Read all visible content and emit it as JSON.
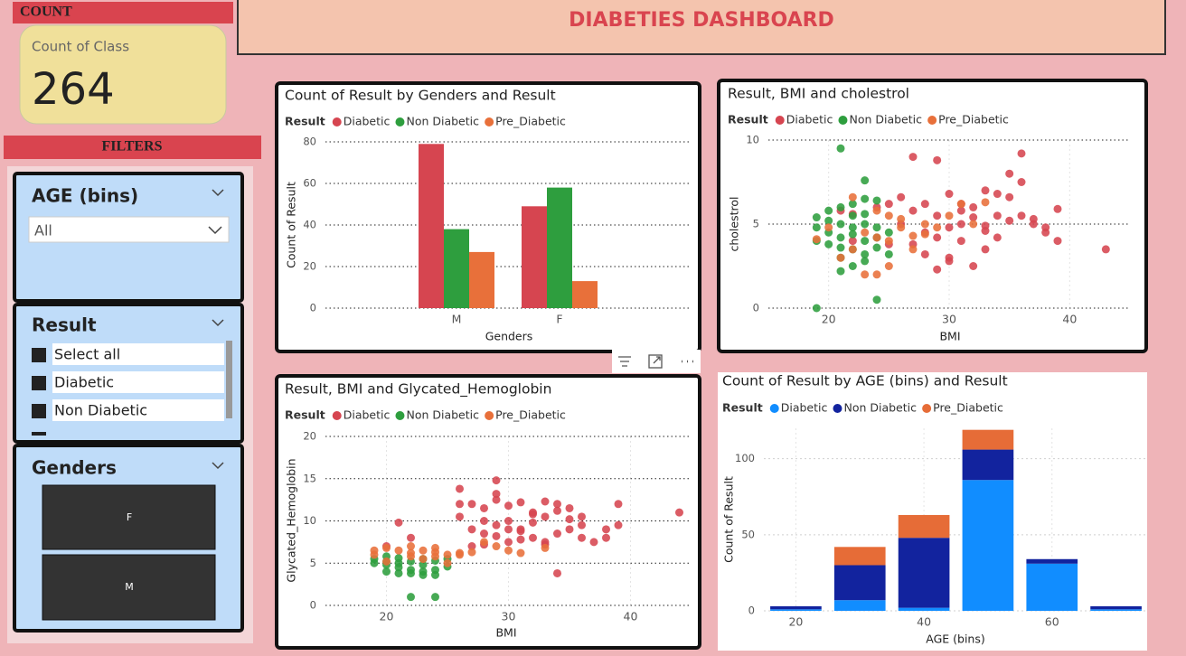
{
  "header": {
    "title": "DIABETIES DASHBOARD"
  },
  "count_card": {
    "section_label": "COUNT",
    "label": "Count of Class",
    "value": 264
  },
  "filters": {
    "section_label": "FILTERS",
    "age_slicer": {
      "title": "AGE (bins)",
      "selection": "All"
    },
    "result_slicer": {
      "title": "Result",
      "items": [
        "Select all",
        "Diabetic",
        "Non Diabetic"
      ]
    },
    "gender_slicer": {
      "title": "Genders",
      "buttons": [
        "F",
        "M"
      ]
    }
  },
  "chart_data": [
    {
      "type": "bar",
      "title": "Count of Result by Genders and Result",
      "legend_title": "Result",
      "categories": [
        "M",
        "F"
      ],
      "series": [
        {
          "name": "Diabetic",
          "color": "#d64550",
          "values": [
            79,
            49
          ]
        },
        {
          "name": "Non Diabetic",
          "color": "#2e9e3e",
          "values": [
            38,
            58
          ]
        },
        {
          "name": "Pre_Diabetic",
          "color": "#e8703a",
          "values": [
            27,
            13
          ]
        }
      ],
      "x_label": "Genders",
      "y_label": "Count of Result",
      "ylim": [
        0,
        80
      ],
      "yticks": [
        0,
        20,
        40,
        60,
        80
      ],
      "grid": true
    },
    {
      "type": "scatter",
      "title": "Result, BMI and cholestrol",
      "legend_title": "Result",
      "x_label": "BMI",
      "y_label": "cholestrol",
      "xlim": [
        15,
        45
      ],
      "xticks": [
        20,
        30,
        40
      ],
      "ylim": [
        0,
        10
      ],
      "yticks": [
        0,
        5,
        10
      ],
      "grid": true,
      "series": [
        {
          "name": "Diabetic",
          "color": "#d64550",
          "x": [
            21,
            22,
            24,
            25,
            26,
            27,
            27,
            28,
            28,
            29,
            29,
            30,
            30,
            31,
            31,
            32,
            32,
            33,
            33,
            34,
            34,
            35,
            35,
            36,
            36,
            37,
            38,
            38,
            39,
            39,
            43,
            26,
            28,
            29,
            30,
            31,
            32,
            33,
            34,
            36,
            27,
            29,
            30,
            31,
            35,
            37,
            24,
            22,
            25,
            33
          ],
          "values": [
            5.8,
            4.0,
            4.2,
            3.8,
            6.6,
            9.0,
            5.8,
            6.2,
            4.5,
            8.8,
            5.5,
            3.0,
            6.8,
            5.0,
            4.0,
            2.5,
            6.0,
            3.5,
            7.0,
            5.5,
            4.2,
            8.0,
            5.2,
            9.2,
            7.5,
            5.0,
            4.5,
            4.8,
            5.9,
            4.0,
            3.5,
            5.0,
            3.2,
            2.3,
            4.8,
            6.2,
            5.4,
            4.6,
            6.8,
            5.5,
            3.8,
            4.2,
            2.8,
            5.8,
            6.6,
            5.3,
            6.0,
            5.6,
            6.2,
            4.9
          ]
        },
        {
          "name": "Non Diabetic",
          "color": "#2e9e3e",
          "x": [
            21,
            23,
            19,
            24,
            19,
            19,
            20,
            20,
            20,
            21,
            21,
            21,
            21,
            22,
            22,
            22,
            22,
            23,
            23,
            23,
            23,
            24,
            24,
            24,
            25,
            25,
            20,
            21,
            22,
            23,
            24,
            19,
            22,
            21,
            23
          ],
          "values": [
            9.5,
            7.6,
            0,
            0.5,
            5.4,
            4.8,
            5.2,
            4.5,
            3.8,
            6.0,
            5.0,
            4.2,
            3.0,
            5.5,
            4.8,
            3.5,
            2.5,
            6.5,
            5.0,
            4.0,
            2.8,
            6.4,
            4.8,
            3.6,
            4.5,
            3.2,
            5.8,
            2.2,
            6.2,
            5.6,
            4.2,
            4.0,
            4.4,
            3.6,
            3.2
          ]
        },
        {
          "name": "Pre_Diabetic",
          "color": "#e8703a",
          "x": [
            19,
            20,
            22,
            23,
            23,
            24,
            24,
            25,
            25,
            26,
            26,
            27,
            27,
            28,
            28,
            29,
            30,
            31,
            32,
            33,
            22,
            24,
            25,
            21
          ],
          "values": [
            4.1,
            4.8,
            3.5,
            2.0,
            4.5,
            2.0,
            4.2,
            5.5,
            2.5,
            4.8,
            5.3,
            3.5,
            4.3,
            4.4,
            5.0,
            4.8,
            5.5,
            6.2,
            5.0,
            6.3,
            6.6,
            5.8,
            4.0,
            3.0
          ]
        }
      ]
    },
    {
      "type": "scatter",
      "title": "Result, BMI and Glycated_Hemoglobin",
      "legend_title": "Result",
      "x_label": "BMI",
      "y_label": "Glycated_Hemoglobin",
      "xlim": [
        15,
        45
      ],
      "xticks": [
        20,
        30,
        40
      ],
      "ylim": [
        0,
        20
      ],
      "yticks": [
        0,
        5,
        10,
        15,
        20
      ],
      "grid": true,
      "series": [
        {
          "name": "Diabetic",
          "color": "#d64550",
          "x": [
            20,
            21,
            22,
            26,
            26,
            27,
            27,
            28,
            28,
            29,
            29,
            29,
            30,
            30,
            31,
            31,
            32,
            32,
            33,
            33,
            34,
            34,
            35,
            35,
            36,
            36,
            37,
            38,
            38,
            39,
            39,
            44,
            27,
            28,
            29,
            30,
            31,
            32,
            33,
            34,
            35,
            28,
            30,
            32,
            34,
            36,
            29,
            31,
            33,
            26
          ],
          "values": [
            7.0,
            9.8,
            8.0,
            13.8,
            10.5,
            9.0,
            12.0,
            8.5,
            11.5,
            14.8,
            12.5,
            9.5,
            10.0,
            7.5,
            12.2,
            9.0,
            8.0,
            11.0,
            10.5,
            7.5,
            12.0,
            3.8,
            9.0,
            11.5,
            8.0,
            10.5,
            7.5,
            9.0,
            8.0,
            12.0,
            9.5,
            11.0,
            7.0,
            10.0,
            13.2,
            11.8,
            8.8,
            9.8,
            12.3,
            8.5,
            10.2,
            7.2,
            9.0,
            10.8,
            11.2,
            9.5,
            8.2,
            7.8,
            7.2,
            12.0
          ]
        },
        {
          "name": "Non Diabetic",
          "color": "#2e9e3e",
          "x": [
            19,
            20,
            20,
            20,
            21,
            21,
            21,
            22,
            22,
            22,
            23,
            23,
            23,
            24,
            24,
            24,
            25,
            22,
            24,
            19,
            21,
            23,
            20,
            25
          ],
          "values": [
            5.5,
            5.8,
            4.8,
            4.0,
            5.6,
            4.5,
            3.8,
            5.2,
            4.2,
            1.0,
            5.5,
            4.0,
            3.6,
            5.3,
            4.2,
            1.0,
            4.6,
            3.8,
            3.6,
            5.0,
            5.0,
            4.8,
            5.2,
            5.5
          ]
        },
        {
          "name": "Pre_Diabetic",
          "color": "#e8703a",
          "x": [
            19,
            19,
            20,
            21,
            22,
            22,
            23,
            23,
            24,
            24,
            25,
            25,
            26,
            27,
            28,
            29,
            30,
            31,
            33,
            20,
            22,
            24,
            26
          ],
          "values": [
            6.0,
            6.5,
            6.8,
            6.5,
            6.2,
            5.8,
            6.5,
            5.5,
            6.3,
            5.8,
            6.0,
            5.0,
            6.2,
            6.3,
            7.5,
            7.0,
            6.5,
            6.2,
            6.8,
            5.2,
            7.0,
            6.8,
            6.0
          ]
        }
      ]
    },
    {
      "type": "bar",
      "stacked": true,
      "title": "Count of Result by AGE (bins) and Result",
      "legend_title": "Result",
      "x_label": "AGE (bins)",
      "y_label": "Count of Result",
      "x": [
        20,
        30,
        40,
        50,
        60,
        70
      ],
      "xlim": [
        15,
        75
      ],
      "xticks": [
        20,
        40,
        60
      ],
      "ylim": [
        0,
        120
      ],
      "yticks": [
        0,
        50,
        100
      ],
      "grid": true,
      "series": [
        {
          "name": "Diabetic",
          "color": "#118dff",
          "values": [
            1,
            7,
            2,
            86,
            31,
            1
          ]
        },
        {
          "name": "Non Diabetic",
          "color": "#12239e",
          "values": [
            2,
            23,
            46,
            20,
            3,
            2
          ]
        },
        {
          "name": "Pre_Diabetic",
          "color": "#e66c37",
          "values": [
            0,
            12,
            15,
            13,
            0,
            0
          ]
        }
      ]
    }
  ]
}
